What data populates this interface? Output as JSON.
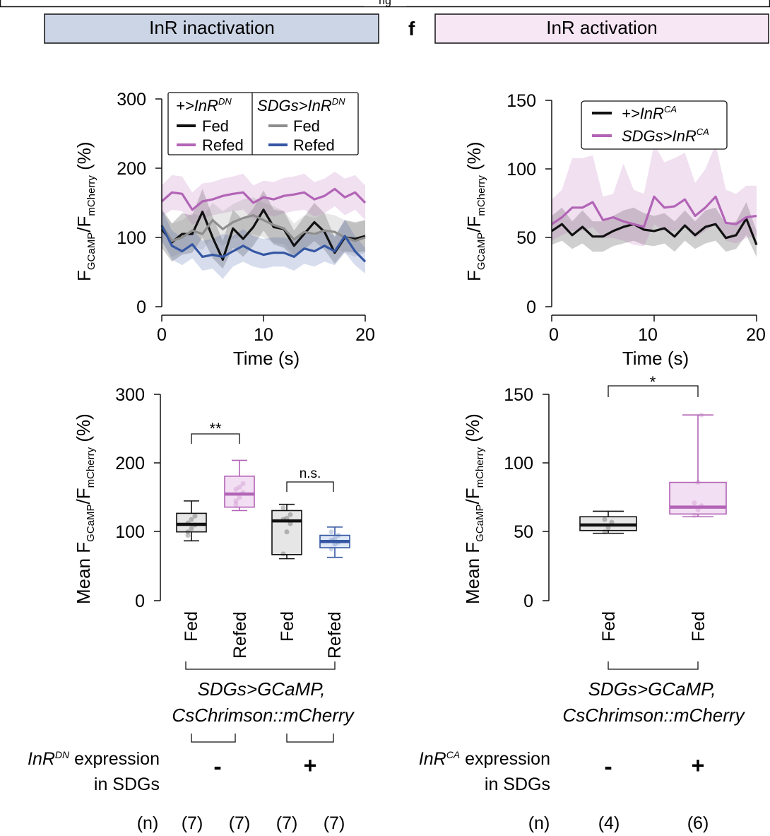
{
  "top_caption": "ng",
  "panels": {
    "left": {
      "header": "InR inactivation",
      "colors": {
        "header_bg": "#ccd5e6"
      },
      "line_chart": {
        "ylabel": {
          "main": "F",
          "sub1": "GCaMP",
          "mid": "/F",
          "sub2": "mCherry",
          "unit": " (%)"
        },
        "xlabel": "Time (s)",
        "y_ticks": [
          "300",
          "200",
          "100",
          "0"
        ],
        "x_ticks": [
          "0",
          "10",
          "20"
        ]
      },
      "legend": {
        "group1": {
          "base": "+>InR",
          "sup": "DN"
        },
        "group2": {
          "base": "SDGs>InR",
          "sup": "DN"
        },
        "items": [
          {
            "label": "Fed",
            "color": "#111111"
          },
          {
            "label": "Refed",
            "color": "#b264b6"
          },
          {
            "label": "Fed",
            "color": "#8e8e8e"
          },
          {
            "label": "Refed",
            "color": "#3557a3"
          }
        ]
      },
      "box_chart": {
        "ylabel": {
          "pre": "Mean F",
          "sub1": "GCaMP",
          "mid": "/F",
          "sub2": "mCherry",
          "unit": " (%)"
        },
        "y_ticks": [
          "300",
          "200",
          "100",
          "0"
        ],
        "categories": [
          "Fed",
          "Refed",
          "Fed",
          "Refed"
        ],
        "sig": [
          {
            "label": "**",
            "between": [
              0,
              1
            ]
          },
          {
            "label": "n.s.",
            "between": [
              2,
              3
            ]
          }
        ]
      },
      "genotype": [
        "SDGs>GCaMP,",
        "CsChrimson::mCherry"
      ],
      "expression": {
        "gene": "InR",
        "sup": "DN",
        "rest": " expression",
        "line2": "in SDGs",
        "signs": [
          "-",
          "+"
        ]
      },
      "n_label": "(n)",
      "n_values": [
        "(7)",
        "(7)",
        "(7)",
        "(7)"
      ]
    },
    "right": {
      "letter": "f",
      "header": "InR activation",
      "colors": {
        "header_bg": "#f7e6f4"
      },
      "line_chart": {
        "ylabel": {
          "main": "F",
          "sub1": "GCaMP",
          "mid": "/F",
          "sub2": "mCherry",
          "unit": " (%)"
        },
        "xlabel": "Time (s)",
        "y_ticks": [
          "150",
          "100",
          "50",
          "0"
        ],
        "x_ticks": [
          "0",
          "10",
          "20"
        ]
      },
      "legend": {
        "items": [
          {
            "base": "+>InR",
            "sup": "CA",
            "color": "#111111"
          },
          {
            "base": "SDGs>InR",
            "sup": "CA",
            "color": "#b264b6"
          }
        ]
      },
      "box_chart": {
        "ylabel": {
          "pre": "Mean F",
          "sub1": "GCaMP",
          "mid": "/F",
          "sub2": "mCherry",
          "unit": " (%)"
        },
        "y_ticks": [
          "150",
          "100",
          "50",
          "0"
        ],
        "categories": [
          "Fed",
          "Fed"
        ],
        "sig": [
          {
            "label": "*",
            "between": [
              0,
              1
            ]
          }
        ]
      },
      "genotype": [
        "SDGs>GCaMP,",
        "CsChrimson::mCherry"
      ],
      "expression": {
        "gene": "InR",
        "sup": "CA",
        "rest": " expression",
        "line2": "in SDGs",
        "signs": [
          "-",
          "+"
        ]
      },
      "n_label": "(n)",
      "n_values": [
        "(4)",
        "(6)"
      ]
    }
  },
  "chart_data": [
    {
      "type": "line",
      "panel": "InR inactivation - time course",
      "xlabel": "Time (s)",
      "ylabel": "FGCaMP/FmCherry (%)",
      "xlim": [
        0,
        20
      ],
      "ylim": [
        0,
        300
      ],
      "x": [
        0,
        1,
        2,
        3,
        4,
        5,
        6,
        7,
        8,
        9,
        10,
        11,
        12,
        13,
        14,
        15,
        16,
        17,
        18,
        19,
        20
      ],
      "series": [
        {
          "name": "+>InR DN Fed",
          "color": "#111111",
          "values": [
            112,
            93,
            105,
            105,
            137,
            100,
            68,
            113,
            98,
            115,
            140,
            115,
            112,
            88,
            105,
            122,
            108,
            78,
            100,
            98,
            102
          ],
          "lower": [
            85,
            65,
            75,
            78,
            100,
            70,
            55,
            85,
            72,
            88,
            110,
            90,
            85,
            70,
            82,
            95,
            82,
            62,
            80,
            78,
            80
          ],
          "upper": [
            140,
            120,
            135,
            132,
            170,
            130,
            95,
            140,
            125,
            142,
            168,
            140,
            138,
            110,
            130,
            150,
            135,
            100,
            125,
            122,
            125
          ]
        },
        {
          "name": "+>InR DN Refed",
          "color": "#b264b6",
          "values": [
            152,
            165,
            163,
            140,
            152,
            155,
            160,
            163,
            165,
            150,
            158,
            155,
            160,
            162,
            165,
            155,
            160,
            170,
            158,
            165,
            150
          ],
          "lower": [
            130,
            140,
            138,
            118,
            128,
            132,
            135,
            138,
            140,
            125,
            135,
            130,
            135,
            138,
            140,
            130,
            135,
            145,
            132,
            140,
            125
          ],
          "upper": [
            175,
            190,
            188,
            165,
            178,
            180,
            185,
            188,
            192,
            175,
            182,
            180,
            186,
            188,
            192,
            180,
            185,
            195,
            185,
            190,
            175
          ]
        },
        {
          "name": "SDGs>InR DN Fed",
          "color": "#8e8e8e",
          "values": [
            118,
            95,
            100,
            110,
            105,
            125,
            112,
            122,
            128,
            132,
            125,
            118,
            113,
            97,
            108,
            105,
            110,
            108,
            100,
            95,
            100
          ],
          "lower": [
            95,
            72,
            78,
            88,
            82,
            100,
            88,
            98,
            102,
            105,
            100,
            92,
            90,
            75,
            85,
            82,
            88,
            85,
            78,
            72,
            78
          ],
          "upper": [
            142,
            120,
            125,
            135,
            130,
            150,
            138,
            148,
            155,
            158,
            150,
            145,
            138,
            120,
            132,
            128,
            135,
            132,
            125,
            120,
            125
          ]
        },
        {
          "name": "SDGs>InR DN Refed",
          "color": "#3557a3",
          "values": [
            117,
            88,
            80,
            90,
            72,
            75,
            72,
            80,
            88,
            80,
            75,
            78,
            78,
            72,
            84,
            80,
            88,
            80,
            102,
            80,
            65
          ],
          "lower": [
            95,
            68,
            60,
            70,
            52,
            55,
            40,
            58,
            65,
            58,
            55,
            58,
            58,
            52,
            62,
            58,
            65,
            60,
            78,
            60,
            48
          ],
          "upper": [
            140,
            110,
            100,
            112,
            95,
            98,
            105,
            102,
            112,
            102,
            98,
            100,
            100,
            95,
            108,
            102,
            112,
            102,
            126,
            102,
            85
          ]
        }
      ]
    },
    {
      "type": "box",
      "panel": "InR inactivation - mean",
      "ylabel": "Mean FGCaMP/FmCherry (%)",
      "ylim": [
        0,
        300
      ],
      "categories": [
        "Fed",
        "Refed",
        "Fed",
        "Refed"
      ],
      "groups": [
        "+>InR DN",
        "+>InR DN",
        "SDGs>InR DN",
        "SDGs>InR DN"
      ],
      "boxes": [
        {
          "min": 87,
          "q1": 100,
          "median": 111,
          "q3": 127,
          "max": 145,
          "color": "#111111",
          "fill": "#e6e6e6",
          "points": [
            95,
            105,
            110,
            113,
            118,
            123,
            100
          ]
        },
        {
          "min": 131,
          "q1": 136,
          "median": 155,
          "q3": 181,
          "max": 204,
          "color": "#b264b6",
          "fill": "#f3dff3",
          "points": [
            140,
            150,
            157,
            162,
            165,
            170,
            145
          ]
        },
        {
          "min": 61,
          "q1": 67,
          "median": 116,
          "q3": 131,
          "max": 140,
          "color": "#111111",
          "fill": "#e6e6e6",
          "points": [
            68,
            100,
            112,
            118,
            120,
            125,
            135
          ]
        },
        {
          "min": 63,
          "q1": 77,
          "median": 86,
          "q3": 95,
          "max": 107,
          "color": "#3557a3",
          "fill": "#dfe8f7",
          "points": [
            75,
            82,
            85,
            88,
            90,
            95,
            100
          ]
        }
      ],
      "significance": [
        {
          "between": [
            "Fed",
            "Refed"
          ],
          "label": "**"
        },
        {
          "between": [
            "Fed",
            "Refed"
          ],
          "label": "n.s."
        }
      ],
      "n": [
        7,
        7,
        7,
        7
      ]
    },
    {
      "type": "line",
      "panel": "InR activation - time course",
      "xlabel": "Time (s)",
      "ylabel": "FGCaMP/FmCherry (%)",
      "xlim": [
        0,
        20
      ],
      "ylim": [
        0,
        150
      ],
      "x": [
        0,
        1,
        2,
        3,
        4,
        5,
        6,
        7,
        8,
        9,
        10,
        11,
        12,
        13,
        14,
        15,
        16,
        17,
        18,
        19,
        20
      ],
      "series": [
        {
          "name": "+>InR CA",
          "color": "#111111",
          "values": [
            55,
            60,
            52,
            58,
            51,
            51,
            55,
            58,
            60,
            56,
            55,
            57,
            51,
            59,
            52,
            58,
            60,
            50,
            52,
            64,
            45
          ],
          "lower": [
            45,
            48,
            42,
            46,
            40,
            40,
            44,
            46,
            48,
            45,
            44,
            46,
            40,
            48,
            42,
            46,
            48,
            40,
            42,
            52,
            36
          ],
          "upper": [
            66,
            72,
            62,
            70,
            62,
            62,
            66,
            70,
            72,
            68,
            66,
            68,
            62,
            70,
            62,
            70,
            72,
            60,
            62,
            76,
            55
          ]
        },
        {
          "name": "SDGs>InR CA",
          "color": "#b264b6",
          "values": [
            60,
            65,
            72,
            72,
            76,
            63,
            65,
            62,
            60,
            58,
            80,
            72,
            73,
            78,
            66,
            72,
            80,
            61,
            60,
            65,
            66
          ],
          "lower": [
            48,
            52,
            55,
            55,
            58,
            50,
            50,
            48,
            45,
            44,
            60,
            55,
            55,
            58,
            50,
            55,
            60,
            48,
            46,
            50,
            52
          ],
          "upper": [
            78,
            85,
            108,
            108,
            110,
            80,
            82,
            104,
            85,
            82,
            118,
            105,
            108,
            112,
            90,
            100,
            118,
            85,
            82,
            88,
            88
          ]
        }
      ]
    },
    {
      "type": "box",
      "panel": "InR activation - mean",
      "ylabel": "Mean FGCaMP/FmCherry (%)",
      "ylim": [
        0,
        150
      ],
      "categories": [
        "Fed",
        "Fed"
      ],
      "groups": [
        "+>InR CA",
        "SDGs>InR CA"
      ],
      "boxes": [
        {
          "min": 49,
          "q1": 51,
          "median": 55,
          "q3": 61,
          "max": 65,
          "color": "#111111",
          "fill": "#e6e6e6",
          "points": [
            50,
            53,
            57,
            59
          ]
        },
        {
          "min": 61,
          "q1": 63,
          "median": 68,
          "q3": 86,
          "max": 135,
          "color": "#b264b6",
          "fill": "#f3dff3",
          "points": [
            62,
            66,
            69,
            71,
            86,
            135
          ]
        }
      ],
      "significance": [
        {
          "between": [
            "Fed",
            "Fed"
          ],
          "label": "*"
        }
      ],
      "n": [
        4,
        6
      ]
    }
  ]
}
